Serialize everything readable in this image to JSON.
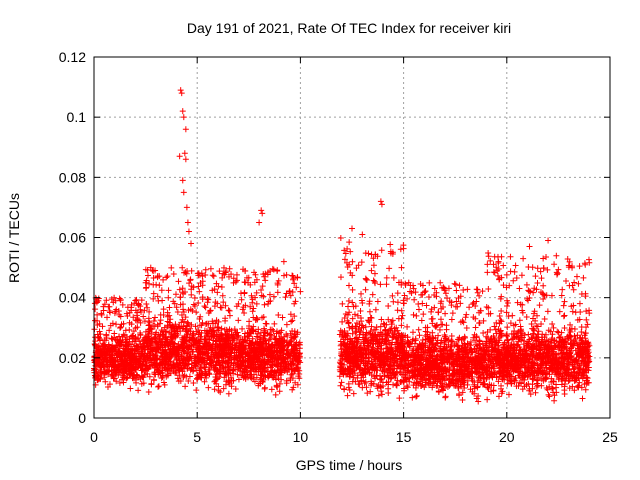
{
  "chart_data": {
    "type": "scatter",
    "title": "Day 191 of 2021, Rate Of TEC Index for receiver kiri",
    "xlabel": "GPS time / hours",
    "ylabel": "ROTI / TECUs",
    "xlim": [
      0,
      25
    ],
    "ylim": [
      0,
      0.12
    ],
    "x_ticks": [
      0,
      5,
      10,
      15,
      20,
      25
    ],
    "x_tick_labels": [
      "0",
      "5",
      "10",
      "15",
      "20",
      "25"
    ],
    "y_ticks": [
      0,
      0.02,
      0.04,
      0.06,
      0.08,
      0.1,
      0.12
    ],
    "y_tick_labels": [
      "0",
      "0.02",
      "0.04",
      "0.06",
      "0.08",
      "0.1",
      "0.12"
    ],
    "grid": true,
    "marker": "+",
    "color": "#ff0000",
    "data_gap_hours": [
      10.1,
      11.9
    ],
    "density_segments": [
      {
        "x_start": 0.0,
        "x_end": 2.5,
        "y_low": 0.008,
        "y_high": 0.03,
        "y_peak": 0.04
      },
      {
        "x_start": 2.5,
        "x_end": 6.5,
        "y_low": 0.007,
        "y_high": 0.035,
        "y_peak": 0.05
      },
      {
        "x_start": 6.5,
        "x_end": 10.0,
        "y_low": 0.007,
        "y_high": 0.032,
        "y_peak": 0.05
      },
      {
        "x_start": 11.9,
        "x_end": 15.0,
        "y_low": 0.005,
        "y_high": 0.035,
        "y_peak": 0.06
      },
      {
        "x_start": 15.0,
        "x_end": 19.0,
        "y_low": 0.004,
        "y_high": 0.03,
        "y_peak": 0.045
      },
      {
        "x_start": 19.0,
        "x_end": 24.0,
        "y_low": 0.005,
        "y_high": 0.032,
        "y_peak": 0.055
      }
    ],
    "outliers": [
      {
        "x": 4.2,
        "y": 0.109
      },
      {
        "x": 4.25,
        "y": 0.108
      },
      {
        "x": 4.3,
        "y": 0.102
      },
      {
        "x": 4.35,
        "y": 0.1
      },
      {
        "x": 4.45,
        "y": 0.096
      },
      {
        "x": 4.15,
        "y": 0.087
      },
      {
        "x": 4.4,
        "y": 0.088
      },
      {
        "x": 4.45,
        "y": 0.086
      },
      {
        "x": 4.3,
        "y": 0.079
      },
      {
        "x": 4.35,
        "y": 0.075
      },
      {
        "x": 4.5,
        "y": 0.07
      },
      {
        "x": 4.55,
        "y": 0.065
      },
      {
        "x": 4.6,
        "y": 0.062
      },
      {
        "x": 4.7,
        "y": 0.058
      },
      {
        "x": 8.1,
        "y": 0.069
      },
      {
        "x": 8.15,
        "y": 0.068
      },
      {
        "x": 8.0,
        "y": 0.065
      },
      {
        "x": 13.9,
        "y": 0.072
      },
      {
        "x": 13.95,
        "y": 0.071
      },
      {
        "x": 12.5,
        "y": 0.063
      },
      {
        "x": 13.0,
        "y": 0.061
      },
      {
        "x": 21.1,
        "y": 0.057
      },
      {
        "x": 22.0,
        "y": 0.059
      },
      {
        "x": 19.6,
        "y": 0.052
      },
      {
        "x": 9.2,
        "y": 0.052
      },
      {
        "x": 8.3,
        "y": 0.048
      },
      {
        "x": 10.0,
        "y": 0.042
      },
      {
        "x": 14.9,
        "y": 0.05
      },
      {
        "x": 23.4,
        "y": 0.047
      }
    ]
  }
}
